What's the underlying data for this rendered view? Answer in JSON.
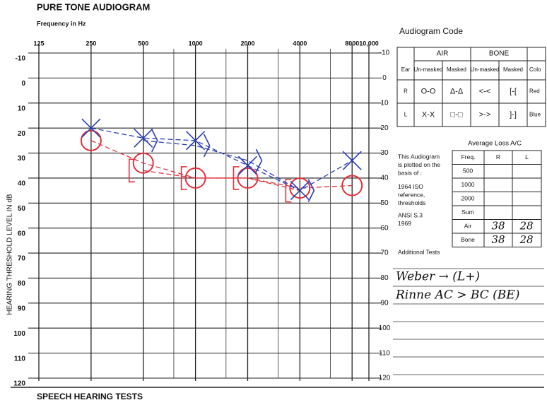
{
  "header": {
    "title": "PURE TONE AUDIOGRAM"
  },
  "chart_data": {
    "type": "line",
    "xlabel": "Frequency in Hz",
    "ylabel": "HEARING THRESHOLD LEVEL IN dB",
    "xscale": "log",
    "xlim": [
      125,
      10000
    ],
    "xticks": [
      125,
      250,
      500,
      1000,
      2000,
      4000,
      8000,
      {
        "value": 10000,
        "label": "10,000"
      }
    ],
    "minor_xticks": [
      750,
      1500,
      3000,
      6000
    ],
    "ylim": [
      -10,
      120
    ],
    "y_inverted": true,
    "yticks": [
      -10,
      0,
      10,
      20,
      30,
      40,
      50,
      60,
      70,
      80,
      90,
      100,
      110,
      120
    ],
    "grid": true,
    "x": [
      250,
      500,
      1000,
      2000,
      4000,
      8000
    ],
    "series": [
      {
        "marker": "circle",
        "color": "#e2303a",
        "values": [
          25,
          34,
          40,
          40,
          44,
          43
        ]
      },
      {
        "marker": "cross",
        "color": "#2a3db5",
        "values": [
          20,
          24,
          25,
          35,
          45,
          33
        ]
      },
      {
        "marker": "bracket-left",
        "color": "#e2303a",
        "values": [
          null,
          37,
          40,
          40,
          45,
          null
        ]
      },
      {
        "marker": "bracket-right",
        "color": "#2a3db5",
        "values": [
          null,
          25,
          27,
          33,
          45,
          null
        ]
      }
    ]
  },
  "code_table": {
    "title": "Audiogram Code",
    "groups": [
      "AIR",
      "BONE"
    ],
    "columns": [
      "Ear",
      "Un-masked",
      "Masked",
      "Un-masked",
      "Masked",
      "Colo"
    ],
    "rows": [
      [
        "R",
        "O-O",
        "Δ-Δ",
        "<-<",
        "[-[",
        "Red"
      ],
      [
        "L",
        "X-X",
        "□-□",
        ">->",
        "]-]",
        "Blue"
      ]
    ]
  },
  "basis": {
    "lines": [
      "This Audiogram",
      "is plotted on the",
      "basis of :",
      "1964 ISO",
      "reference,",
      "thresholds",
      "ANSI S.3",
      "1969"
    ]
  },
  "average_loss": {
    "title": "Average Loss A/C",
    "columns": [
      "Freq.",
      "R",
      "L"
    ],
    "rows": [
      {
        "label": "500"
      },
      {
        "label": "1000"
      },
      {
        "label": "2000"
      },
      {
        "label": "Sum"
      },
      {
        "label": "Air",
        "R": 38,
        "L": 28
      },
      {
        "label": "Bone",
        "R": 38,
        "L": 28
      }
    ]
  },
  "additional_tests": {
    "title": "Additional Tests",
    "notes": [
      "Weber → (L+)",
      "Rinne AC > BC (BE)"
    ]
  },
  "footer": {
    "title": "SPEECH HEARING TESTS"
  }
}
